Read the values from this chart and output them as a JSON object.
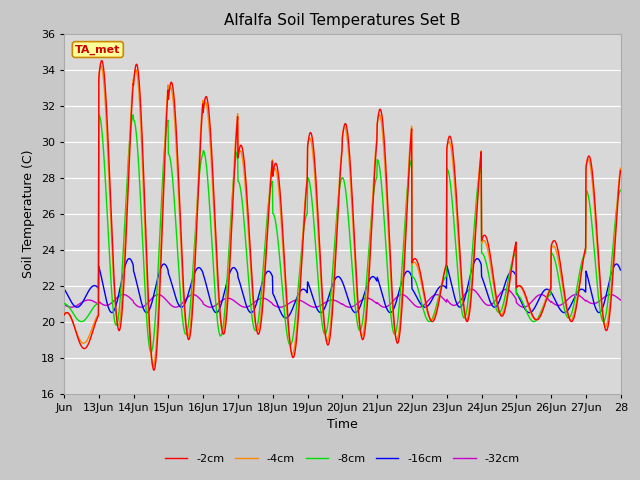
{
  "title": "Alfalfa Soil Temperatures Set B",
  "xlabel": "Time",
  "ylabel": "Soil Temperature (C)",
  "xlim_start": 0,
  "xlim_end": 384,
  "ylim": [
    16,
    36
  ],
  "yticks": [
    16,
    18,
    20,
    22,
    24,
    26,
    28,
    30,
    32,
    34,
    36
  ],
  "xtick_labels": [
    "Jun",
    "13Jun",
    "14Jun",
    "15Jun",
    "16Jun",
    "17Jun",
    "18Jun",
    "19Jun",
    "20Jun",
    "21Jun",
    "22Jun",
    "23Jun",
    "24Jun",
    "25Jun",
    "26Jun",
    "27Jun",
    "28"
  ],
  "xtick_positions": [
    0,
    24,
    48,
    72,
    96,
    120,
    144,
    168,
    192,
    216,
    240,
    264,
    288,
    312,
    336,
    360,
    384
  ],
  "outer_bg_color": "#c8c8c8",
  "plot_bg_color": "#d8d8d8",
  "grid_color": "#ffffff",
  "annotation_text": "TA_met",
  "annotation_bg": "#ffff99",
  "annotation_border": "#cc8800",
  "annotation_text_color": "#cc0000",
  "series_colors": [
    "#ff0000",
    "#ff8800",
    "#00dd00",
    "#0000ff",
    "#cc00cc"
  ],
  "series_labels": [
    "-2cm",
    "-4cm",
    "-8cm",
    "-16cm",
    "-32cm"
  ],
  "title_fontsize": 11,
  "axis_label_fontsize": 9,
  "tick_label_fontsize": 8,
  "peaks_2cm": [
    20.5,
    34.5,
    34.3,
    33.3,
    32.5,
    29.8,
    28.8,
    30.5,
    31.0,
    31.8,
    23.5,
    30.3,
    24.8,
    22.0,
    24.5,
    29.2
  ],
  "troughs_2cm": [
    18.5,
    19.5,
    17.3,
    19.0,
    19.3,
    19.3,
    18.0,
    18.7,
    19.0,
    18.8,
    20.0,
    20.0,
    20.3,
    20.1,
    20.0,
    19.5
  ],
  "peaks_4cm": [
    20.5,
    34.2,
    34.0,
    33.0,
    32.2,
    29.5,
    28.5,
    30.2,
    30.8,
    31.5,
    23.3,
    30.0,
    24.5,
    22.0,
    24.2,
    29.0
  ],
  "troughs_4cm": [
    18.8,
    19.8,
    17.5,
    19.2,
    19.5,
    19.5,
    18.2,
    18.9,
    19.2,
    19.0,
    20.1,
    20.1,
    20.4,
    20.1,
    20.1,
    19.7
  ],
  "peaks_8cm": [
    21.0,
    31.5,
    31.2,
    29.3,
    29.5,
    27.8,
    26.0,
    28.0,
    28.0,
    29.0,
    22.5,
    28.5,
    23.8,
    21.5,
    23.8,
    27.3
  ],
  "troughs_8cm": [
    20.0,
    19.8,
    18.3,
    19.3,
    19.2,
    19.5,
    18.7,
    19.3,
    19.5,
    19.3,
    20.0,
    20.2,
    20.5,
    20.0,
    20.2,
    20.0
  ],
  "peaks_16cm": [
    22.0,
    23.5,
    23.2,
    23.0,
    23.0,
    22.8,
    21.8,
    22.5,
    22.5,
    22.8,
    22.0,
    23.5,
    22.8,
    21.8,
    21.8,
    23.2
  ],
  "troughs_16cm": [
    20.8,
    20.5,
    20.5,
    20.8,
    20.5,
    20.5,
    20.2,
    20.5,
    20.5,
    20.5,
    20.8,
    20.8,
    20.8,
    20.5,
    20.5,
    20.5
  ],
  "peaks_32cm": [
    21.2,
    21.5,
    21.5,
    21.5,
    21.3,
    21.3,
    21.2,
    21.2,
    21.3,
    21.5,
    21.5,
    21.8,
    21.8,
    21.5,
    21.5,
    21.5
  ],
  "troughs_32cm": [
    20.8,
    20.9,
    20.8,
    20.8,
    20.8,
    20.8,
    20.8,
    20.8,
    20.8,
    20.8,
    20.8,
    20.9,
    20.9,
    20.8,
    20.9,
    21.0
  ]
}
